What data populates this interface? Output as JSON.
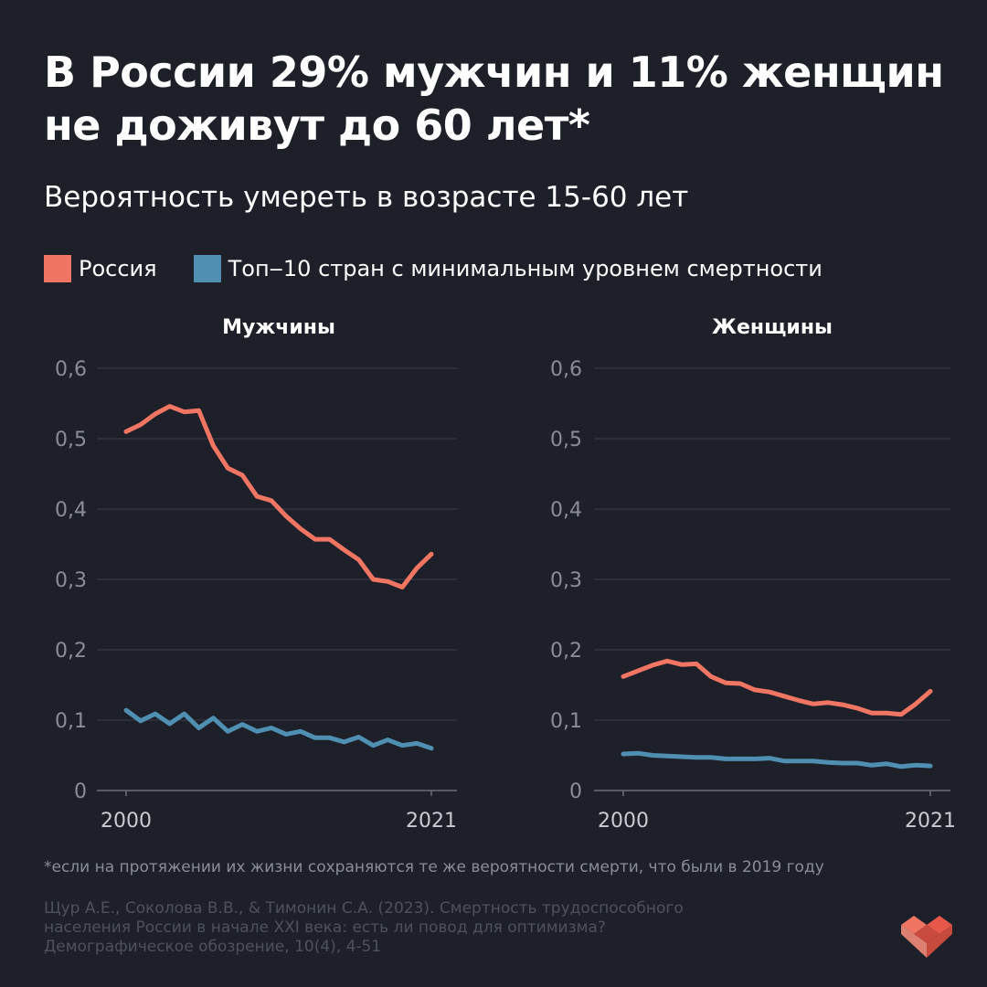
{
  "title_line1": "В России 29% мужчин и 11% женщин",
  "title_line2": "не доживут до 60 лет*",
  "subtitle": "Вероятность умереть в возрасте 15-60 лет",
  "legend": [
    {
      "label": "Россия",
      "color": "#f07563"
    },
    {
      "label": "Топ‒10 стран с минимальным уровнем смертности",
      "color": "#4f8fb1"
    }
  ],
  "footnote": "*если на протяжении их жизни сохраняются те же вероятности смерти, что были в 2019 году",
  "source": "Щур А.Е., Соколова В.В., & Тимонин С.А. (2023). Смертность трудоспособного населения России в начале XXI века: есть ли повод для оптимизма? Демографическое обозрение, 10(4), 4-51",
  "logo_icon": "heart-icon",
  "chart_data": [
    {
      "type": "line",
      "title": "Мужчины",
      "x": [
        2000,
        2001,
        2002,
        2003,
        2004,
        2005,
        2006,
        2007,
        2008,
        2009,
        2010,
        2011,
        2012,
        2013,
        2014,
        2015,
        2016,
        2017,
        2018,
        2019,
        2020,
        2021
      ],
      "xticks": [
        "2000",
        "2021"
      ],
      "ylim": [
        0,
        0.6
      ],
      "yticks": [
        "0",
        "0,1",
        "0,2",
        "0,3",
        "0,4",
        "0,5",
        "0,6"
      ],
      "series": [
        {
          "name": "Россия",
          "color": "#f07563",
          "values": [
            0.51,
            0.52,
            0.535,
            0.546,
            0.538,
            0.54,
            0.49,
            0.458,
            0.448,
            0.418,
            0.412,
            0.39,
            0.372,
            0.357,
            0.357,
            0.342,
            0.328,
            0.3,
            0.297,
            0.289,
            0.316,
            0.336
          ]
        },
        {
          "name": "Топ‒10 стран с минимальным уровнем смертности",
          "color": "#4f8fb1",
          "values": [
            0.114,
            0.099,
            0.109,
            0.095,
            0.109,
            0.089,
            0.103,
            0.084,
            0.094,
            0.084,
            0.089,
            0.08,
            0.084,
            0.075,
            0.075,
            0.069,
            0.076,
            0.064,
            0.072,
            0.064,
            0.067,
            0.06
          ]
        }
      ]
    },
    {
      "type": "line",
      "title": "Женщины",
      "x": [
        2000,
        2001,
        2002,
        2003,
        2004,
        2005,
        2006,
        2007,
        2008,
        2009,
        2010,
        2011,
        2012,
        2013,
        2014,
        2015,
        2016,
        2017,
        2018,
        2019,
        2020,
        2021
      ],
      "xticks": [
        "2000",
        "2021"
      ],
      "ylim": [
        0,
        0.6
      ],
      "yticks": [
        "0",
        "0,1",
        "0,2",
        "0,3",
        "0,4",
        "0,5",
        "0,6"
      ],
      "series": [
        {
          "name": "Россия",
          "color": "#f07563",
          "values": [
            0.162,
            0.17,
            0.178,
            0.184,
            0.179,
            0.18,
            0.162,
            0.153,
            0.152,
            0.143,
            0.14,
            0.134,
            0.128,
            0.123,
            0.125,
            0.122,
            0.117,
            0.11,
            0.11,
            0.108,
            0.123,
            0.141
          ]
        },
        {
          "name": "Топ‒10 стран с минимальным уровнем смертности",
          "color": "#4f8fb1",
          "values": [
            0.052,
            0.053,
            0.05,
            0.049,
            0.048,
            0.047,
            0.047,
            0.045,
            0.045,
            0.045,
            0.046,
            0.042,
            0.042,
            0.042,
            0.04,
            0.039,
            0.039,
            0.036,
            0.038,
            0.034,
            0.036,
            0.035
          ]
        }
      ]
    }
  ]
}
